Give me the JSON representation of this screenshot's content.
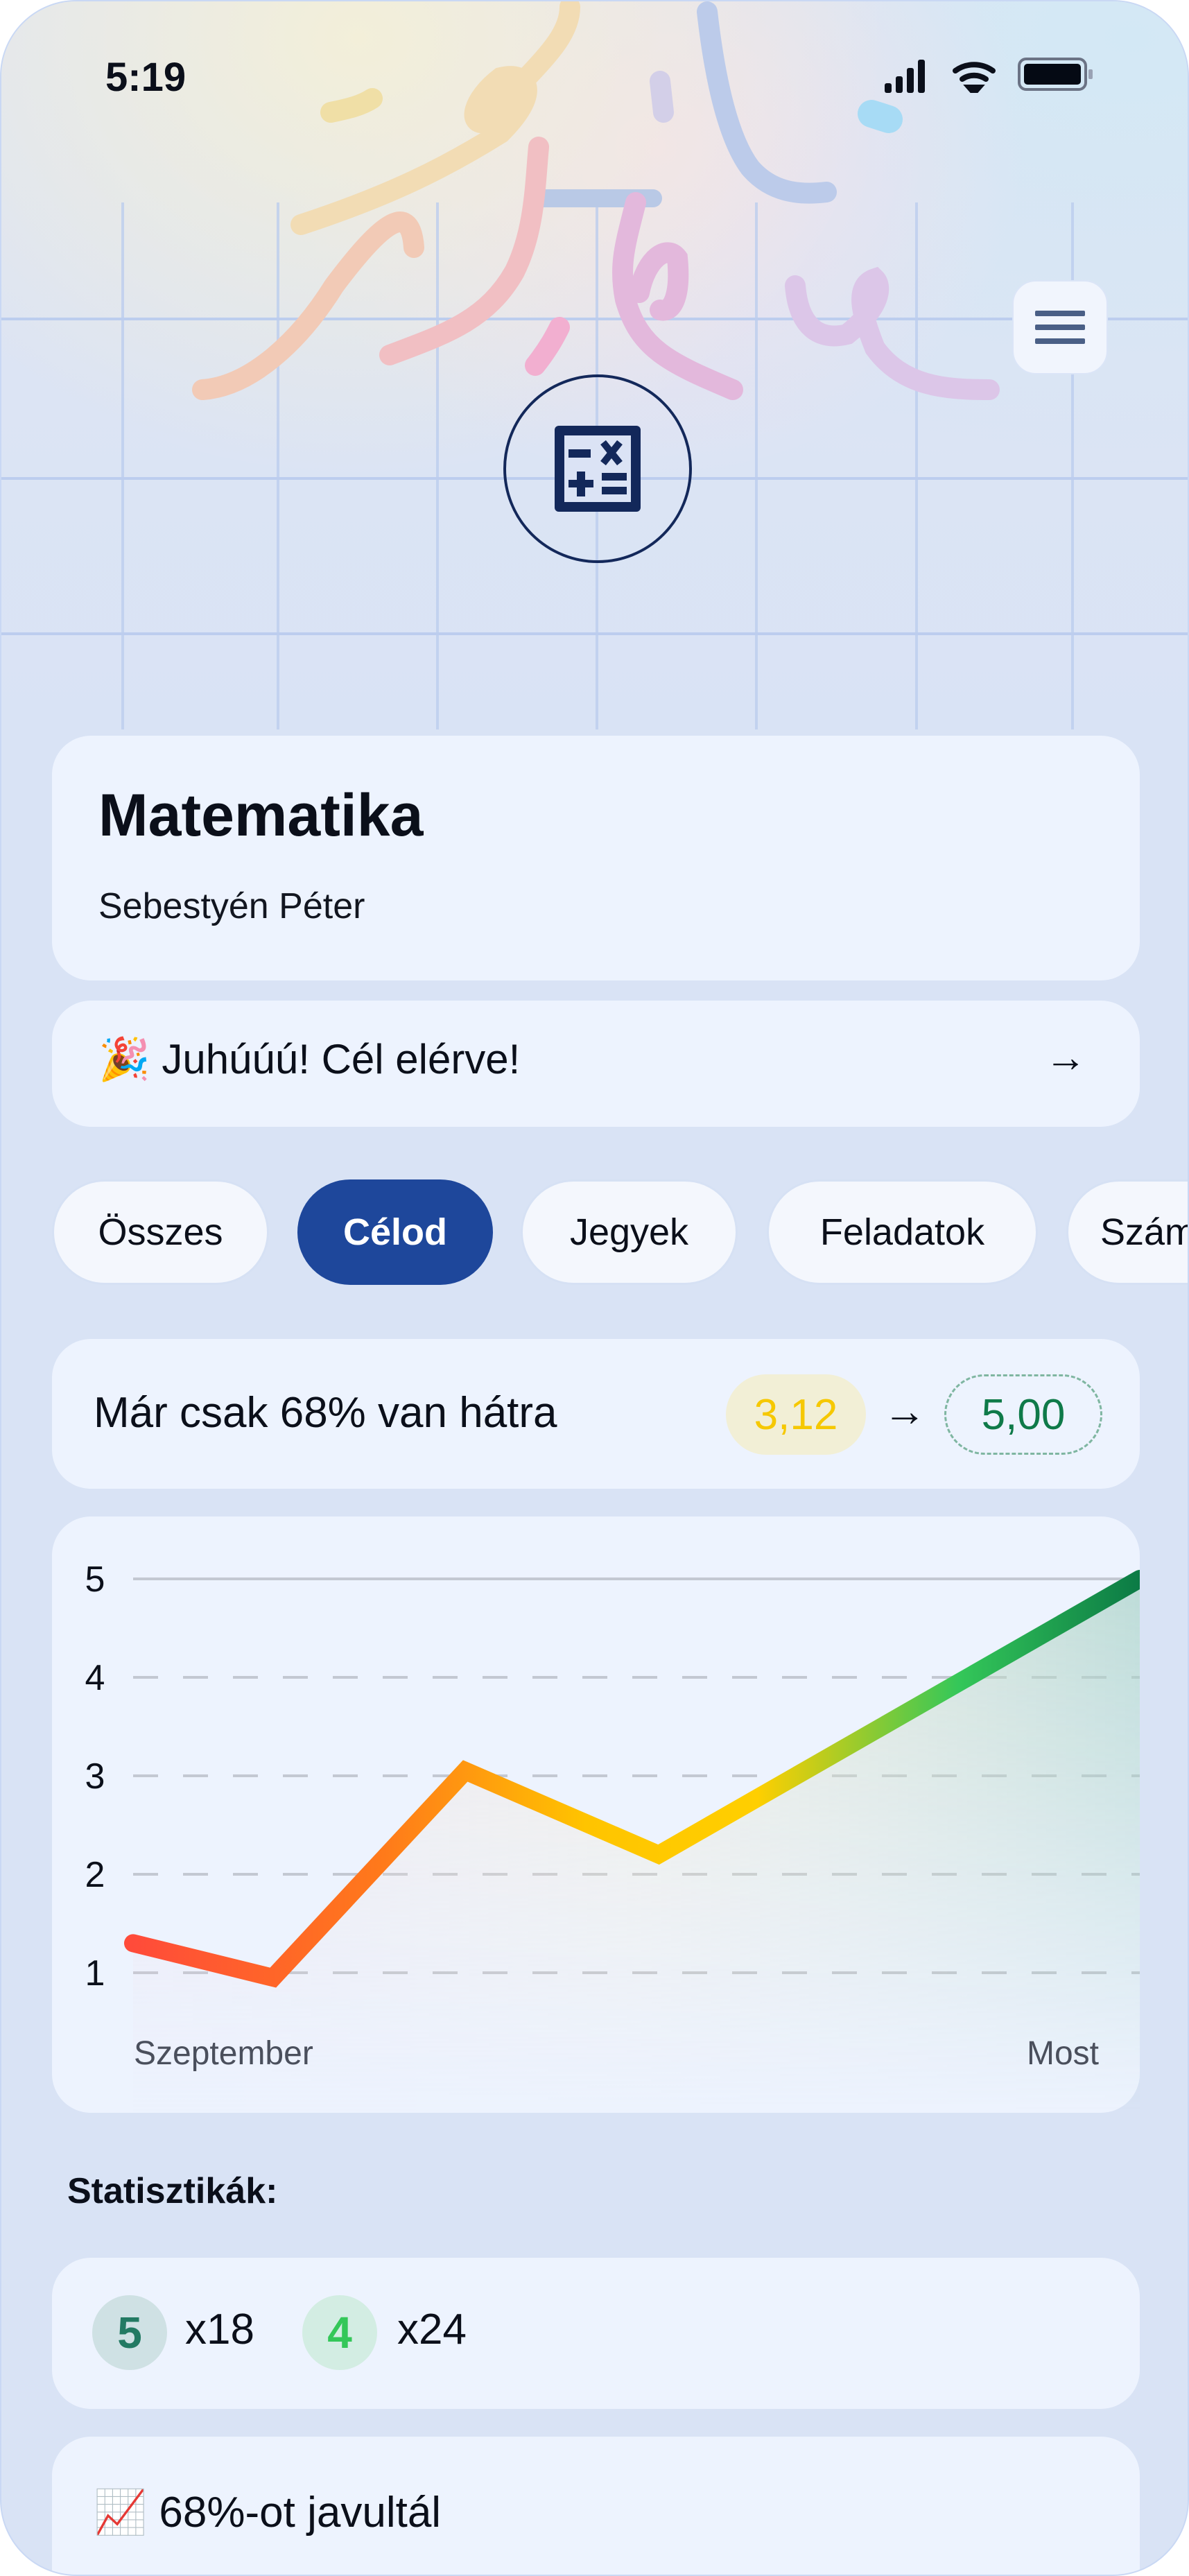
{
  "status_bar": {
    "time": "5:19",
    "icons": [
      "signal-icon",
      "wifi-icon",
      "battery-icon"
    ]
  },
  "header": {
    "menu_icon": "hamburger-menu-icon",
    "subject_icon": "calculator-icon"
  },
  "subject": {
    "title": "Matematika",
    "teacher": "Sebestyén Péter"
  },
  "banner": {
    "text": "🎉 Juhúúú! Cél elérve!",
    "arrow": "→"
  },
  "tabs": [
    {
      "label": "Összes",
      "active": false
    },
    {
      "label": "Célod",
      "active": true
    },
    {
      "label": "Jegyek",
      "active": false
    },
    {
      "label": "Feladatok",
      "active": false
    },
    {
      "label": "Számonkérések",
      "active": false
    }
  ],
  "goal": {
    "text": "Már csak 68% van hátra",
    "current": "3,12",
    "arrow": "→",
    "target": "5,00",
    "current_color": "#f6c800",
    "target_color": "#0f7a49"
  },
  "chart_data": {
    "type": "line",
    "x_labels": [
      "Szeptember",
      "Most"
    ],
    "values": [
      1.3,
      0.95,
      3.05,
      2.2,
      5.0
    ],
    "y_ticks": [
      "1",
      "2",
      "3",
      "4",
      "5"
    ],
    "ylim": [
      0.5,
      5
    ],
    "grid": "dashed horizontal",
    "line_gradient": [
      "#ff4b3a",
      "#ff9a00",
      "#ffcc00",
      "#34c759",
      "#0b7a45"
    ]
  },
  "stats": {
    "heading": "Statisztikák:",
    "grades": [
      {
        "grade": "5",
        "count": "x18",
        "color": "#237a63",
        "bg": "#cfe1e4"
      },
      {
        "grade": "4",
        "count": "x24",
        "color": "#34c759",
        "bg": "#d3ede3"
      }
    ],
    "improvement": "📈 68%-ot javultál"
  }
}
